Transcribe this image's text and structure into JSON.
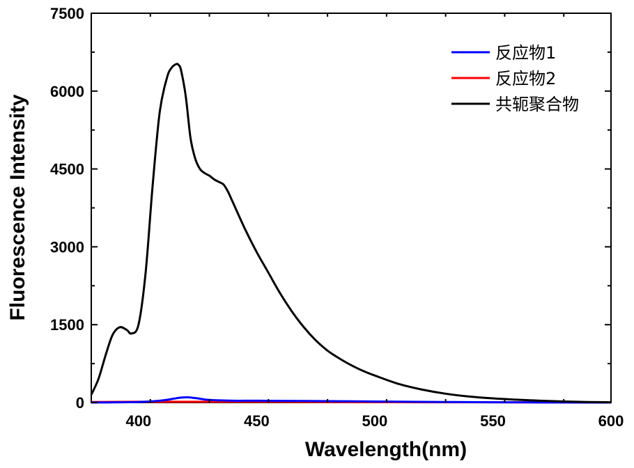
{
  "chart_data": {
    "type": "line",
    "xlabel": "Wavelength(nm)",
    "ylabel": "Fluorescence Intensity",
    "xlim": [
      380,
      600
    ],
    "ylim": [
      0,
      7500
    ],
    "xticks": [
      400,
      450,
      500,
      550,
      600
    ],
    "yticks": [
      0,
      1500,
      3000,
      4500,
      6000,
      7500
    ],
    "grid": false,
    "legend_position": "top-right",
    "series": [
      {
        "name": "反应物1",
        "color": "#0000ff",
        "x": [
          380,
          400,
          410,
          415,
          418,
          421,
          425,
          430,
          440,
          450,
          470,
          500,
          550,
          600
        ],
        "y": [
          0,
          10,
          40,
          75,
          95,
          100,
          80,
          50,
          35,
          35,
          30,
          20,
          5,
          0
        ]
      },
      {
        "name": "反应物2",
        "color": "#ff0000",
        "x": [
          380,
          400,
          420,
          450,
          480,
          500,
          520,
          550,
          575,
          600
        ],
        "y": [
          10,
          15,
          15,
          15,
          10,
          8,
          5,
          5,
          3,
          0
        ]
      },
      {
        "name": "共轭聚合物",
        "color": "#000000",
        "x": [
          380,
          383,
          386,
          389,
          392,
          395,
          397,
          400,
          403,
          406,
          409,
          412,
          414,
          416,
          417,
          418,
          420,
          422,
          424,
          426,
          428,
          430,
          432,
          434,
          436,
          438,
          440,
          445,
          450,
          455,
          460,
          465,
          470,
          475,
          480,
          485,
          490,
          495,
          500,
          510,
          520,
          530,
          540,
          550,
          560,
          570,
          580,
          590,
          600
        ],
        "y": [
          150,
          450,
          900,
          1300,
          1450,
          1400,
          1330,
          1500,
          2500,
          4200,
          5600,
          6250,
          6450,
          6520,
          6500,
          6400,
          5900,
          5100,
          4700,
          4500,
          4420,
          4370,
          4300,
          4250,
          4200,
          4050,
          3850,
          3350,
          2900,
          2500,
          2100,
          1750,
          1450,
          1200,
          1000,
          850,
          720,
          610,
          520,
          360,
          250,
          170,
          115,
          80,
          55,
          35,
          20,
          10,
          5
        ]
      }
    ]
  }
}
